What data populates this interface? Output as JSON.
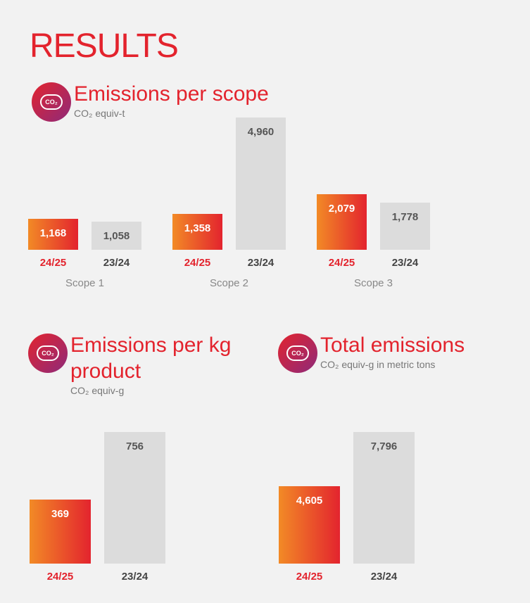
{
  "title": "RESULTS",
  "chart_data": [
    {
      "type": "bar",
      "title": "Emissions per scope",
      "subtitle": "CO₂ equiv-t",
      "icon_text": "CO₂",
      "categories": [
        "Scope 1",
        "Scope 2",
        "Scope 3"
      ],
      "series": [
        {
          "name": "24/25",
          "color": [
            "#f28a26",
            "#e3242e"
          ],
          "label_color": "#e3232d",
          "values": [
            1168,
            1358,
            2079
          ],
          "value_labels": [
            "1,168",
            "1,358",
            "2,079"
          ]
        },
        {
          "name": "23/24",
          "color": "#dcdcdc",
          "label_color": "#444444",
          "values": [
            1058,
            4960,
            1778
          ],
          "value_labels": [
            "1,058",
            "4,960",
            "1,778"
          ]
        }
      ]
    },
    {
      "type": "bar",
      "title": "Emissions per kg product",
      "subtitle": "CO₂ equiv-g",
      "icon_text": "CO₂",
      "categories": [
        null
      ],
      "series": [
        {
          "name": "24/25",
          "color": [
            "#f28a26",
            "#e3242e"
          ],
          "label_color": "#e3232d",
          "values": [
            369
          ]
        },
        {
          "name": "23/24",
          "color": "#dcdcdc",
          "label_color": "#444444",
          "values": [
            756
          ]
        }
      ]
    },
    {
      "type": "bar",
      "title": "Total emissions",
      "subtitle": "CO₂ equiv-g in metric tons",
      "icon_text": "CO₂",
      "categories": [
        null
      ],
      "series": [
        {
          "name": "24/25",
          "color": [
            "#f28a26",
            "#e3242e"
          ],
          "label_color": "#e3232d",
          "values": [
            4605
          ],
          "value_labels": [
            "4,605"
          ]
        },
        {
          "name": "23/24",
          "color": "#dcdcdc",
          "label_color": "#444444",
          "values": [
            7796
          ],
          "value_labels": [
            "7,796"
          ]
        }
      ]
    }
  ]
}
